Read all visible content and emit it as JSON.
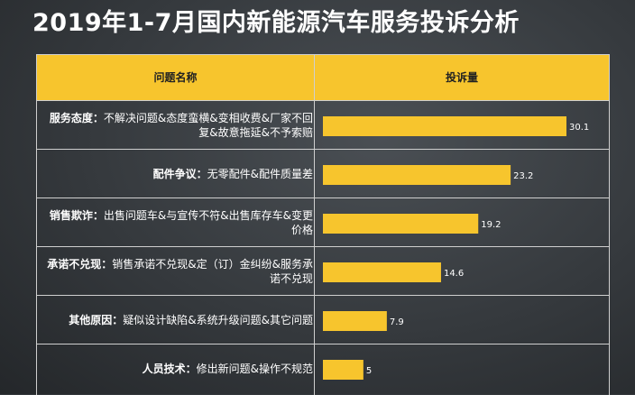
{
  "title": "2019年1-7月国内新能源汽车服务投诉分析",
  "table": {
    "col1_header": "问题名称",
    "col2_header": "投诉量"
  },
  "rows": [
    {
      "name": "服务态度：",
      "detail": "不解决问题&态度蛮横&变相收费&厂家不回复&故意拖延&不予索赔"
    },
    {
      "name": "配件争议：",
      "detail": "无零配件&配件质量差"
    },
    {
      "name": "销售欺诈：",
      "detail": "出售问题车&与宣传不符&出售库存车&变更价格"
    },
    {
      "name": "承诺不兑现：",
      "detail": "销售承诺不兑现&定（订）金纠纷&服务承诺不兑现"
    },
    {
      "name": "其他原因：",
      "detail": "疑似设计缺陷&系统升级问题&其它问题"
    },
    {
      "name": "人员技术：",
      "detail": "修出新问题&操作不规范"
    }
  ],
  "colors": {
    "bar": "#f7c52d",
    "header": "#f7c52d",
    "background": "#34383c"
  },
  "chart_data": {
    "type": "bar",
    "orientation": "horizontal",
    "categories": [
      "服务态度",
      "配件争议",
      "销售欺诈",
      "承诺不兑现",
      "其他原因",
      "人员技术"
    ],
    "values": [
      30.1,
      23.2,
      19.2,
      14.6,
      7.9,
      5
    ],
    "value_labels": [
      "30.1",
      "23.2",
      "19.2",
      "14.6",
      "7.9",
      "5"
    ],
    "title": "2019年1-7月国内新能源汽车服务投诉分析",
    "xlabel": "",
    "ylabel": "",
    "xlim": [
      0,
      35
    ],
    "grid": false
  }
}
